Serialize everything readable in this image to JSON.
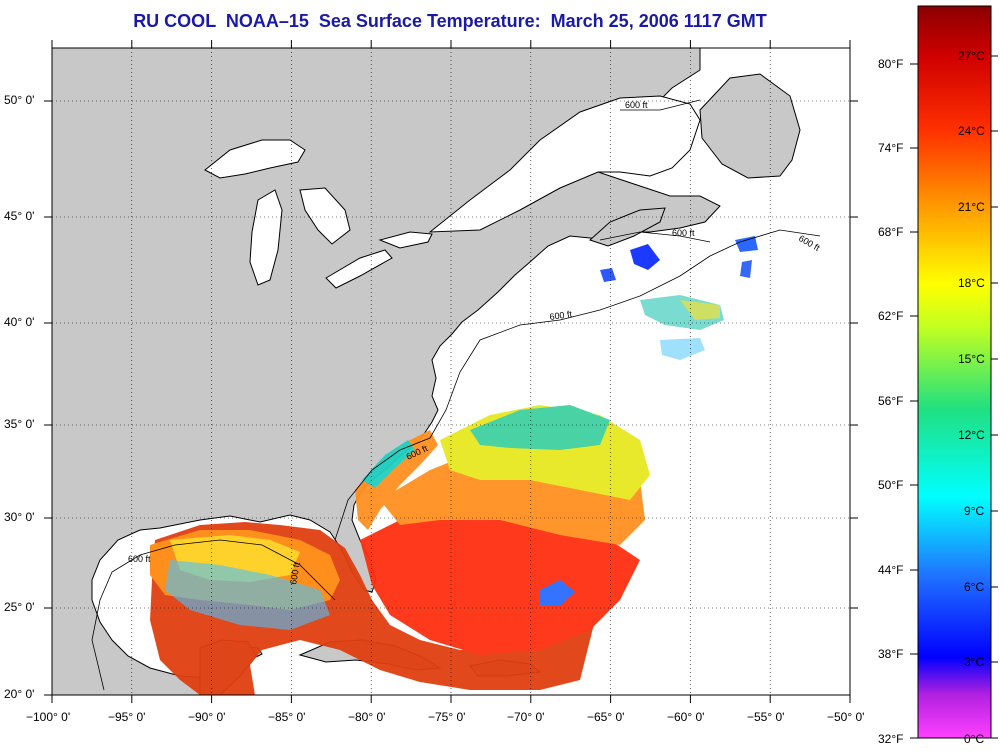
{
  "title": "RU COOL  NOAA–15  Sea Surface Temperature:  March 25, 2006 1117 GMT",
  "map": {
    "lon_labels": [
      "−100° 0'",
      "−95° 0'",
      "−90° 0'",
      "−85° 0'",
      "−80° 0'",
      "−75° 0'",
      "−70° 0'",
      "−65° 0'",
      "−60° 0'",
      "−55° 0'",
      "−50° 0'"
    ],
    "lat_labels": [
      "20° 0'",
      "25° 0'",
      "30° 0'",
      "35° 0'",
      "40° 0'",
      "45° 0'",
      "50° 0'"
    ],
    "contour_labels": [
      "600 ft",
      "600 ft",
      "600 ft",
      "600 ft",
      "600 ft",
      "600 ft",
      "600 ft"
    ],
    "colors": {
      "land": "#c8c8c8",
      "ocean_nodata": "#ffffff",
      "title": "#1a1aa6"
    }
  },
  "colorbar": {
    "fahrenheit_labels": [
      "80°F",
      "74°F",
      "68°F",
      "62°F",
      "56°F",
      "50°F",
      "44°F",
      "38°F",
      "32°F"
    ],
    "celsius_labels": [
      "27°C",
      "24°C",
      "21°C",
      "18°C",
      "15°C",
      "12°C",
      "9°C",
      "6°C",
      "3°C",
      "0°C"
    ],
    "stops": [
      "#8b0000",
      "#ff2000",
      "#ff9000",
      "#ffff00",
      "#20e080",
      "#00ffff",
      "#2060ff",
      "#0000ff",
      "#8000c0",
      "#ff40ff"
    ]
  }
}
